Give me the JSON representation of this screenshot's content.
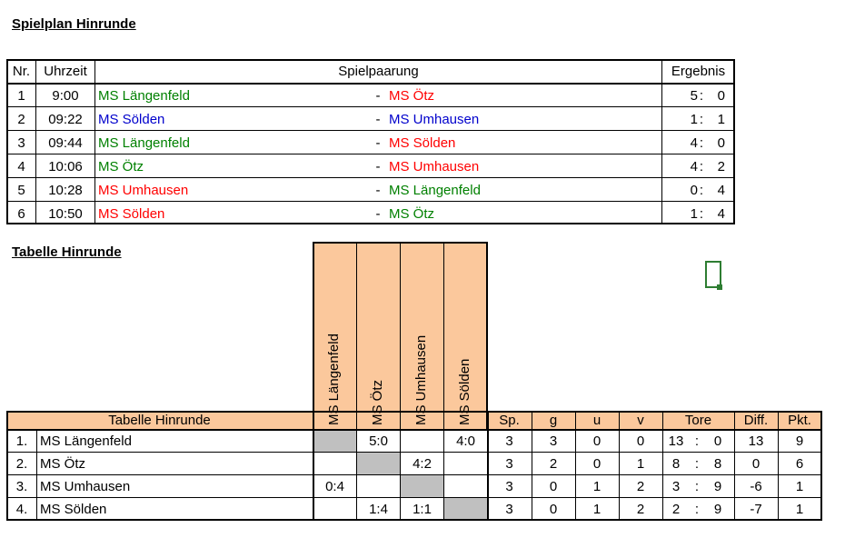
{
  "spielplan": {
    "title": "Spielplan Hinrunde",
    "headers": {
      "nr": "Nr.",
      "zeit": "Uhrzeit",
      "paarung": "Spielpaarung",
      "ergebnis": "Ergebnis"
    },
    "rows": [
      {
        "nr": "1",
        "zeit": "9:00",
        "home": "MS Längenfeld",
        "home_color": "green",
        "sep": "-",
        "away": "MS Ötz",
        "away_color": "red",
        "g1": "5",
        "colon": ":",
        "g2": "0"
      },
      {
        "nr": "2",
        "zeit": "09:22",
        "home": "MS Sölden",
        "home_color": "blue",
        "sep": "-",
        "away": "MS Umhausen",
        "away_color": "blue",
        "g1": "1",
        "colon": ":",
        "g2": "1"
      },
      {
        "nr": "3",
        "zeit": "09:44",
        "home": "MS Längenfeld",
        "home_color": "green",
        "sep": "-",
        "away": "MS Sölden",
        "away_color": "red",
        "g1": "4",
        "colon": ":",
        "g2": "0"
      },
      {
        "nr": "4",
        "zeit": "10:06",
        "home": "MS Ötz",
        "home_color": "green",
        "sep": "-",
        "away": "MS Umhausen",
        "away_color": "red",
        "g1": "4",
        "colon": ":",
        "g2": "2"
      },
      {
        "nr": "5",
        "zeit": "10:28",
        "home": "MS Umhausen",
        "home_color": "red",
        "sep": "-",
        "away": "MS Längenfeld",
        "away_color": "green",
        "g1": "0",
        "colon": ":",
        "g2": "4"
      },
      {
        "nr": "6",
        "zeit": "10:50",
        "home": "MS Sölden",
        "home_color": "red",
        "sep": "-",
        "away": "MS Ötz",
        "away_color": "green",
        "g1": "1",
        "colon": ":",
        "g2": "4"
      }
    ]
  },
  "tabelle": {
    "title": "Tabelle Hinrunde",
    "header_label": "Tabelle Hinrunde",
    "team_columns": [
      "MS Längenfeld",
      "MS Ötz",
      "MS Umhausen",
      "MS Sölden"
    ],
    "stat_headers": {
      "sp": "Sp.",
      "g": "g",
      "u": "u",
      "v": "v",
      "tore": "Tore",
      "diff": "Diff.",
      "pkt": "Pkt."
    },
    "rows": [
      {
        "rank": "1.",
        "team": "MS Längenfeld",
        "results": [
          "",
          "5:0",
          "",
          "4:0"
        ],
        "sp": "3",
        "g": "3",
        "u": "0",
        "v": "0",
        "tore_for": "13",
        "colon": ":",
        "tore_against": "0",
        "diff": "13",
        "pkt": "9"
      },
      {
        "rank": "2.",
        "team": "MS Ötz",
        "results": [
          "",
          "",
          "4:2",
          ""
        ],
        "sp": "3",
        "g": "2",
        "u": "0",
        "v": "1",
        "tore_for": "8",
        "colon": ":",
        "tore_against": "8",
        "diff": "0",
        "pkt": "6"
      },
      {
        "rank": "3.",
        "team": "MS Umhausen",
        "results": [
          "0:4",
          "",
          "",
          ""
        ],
        "sp": "3",
        "g": "0",
        "u": "1",
        "v": "2",
        "tore_for": "3",
        "colon": ":",
        "tore_against": "9",
        "diff": "-6",
        "pkt": "1"
      },
      {
        "rank": "4.",
        "team": "MS Sölden",
        "results": [
          "",
          "1:4",
          "1:1",
          ""
        ],
        "sp": "3",
        "g": "0",
        "u": "1",
        "v": "2",
        "tore_for": "2",
        "colon": ":",
        "tore_against": "9",
        "diff": "-7",
        "pkt": "1"
      }
    ]
  },
  "colors": {
    "header_peach": "#fbc89c",
    "diagonal_gray": "#c0c0c0",
    "green": "#008000",
    "blue": "#0000cc",
    "red": "#ff0000",
    "cursor": "#2e7d32"
  }
}
